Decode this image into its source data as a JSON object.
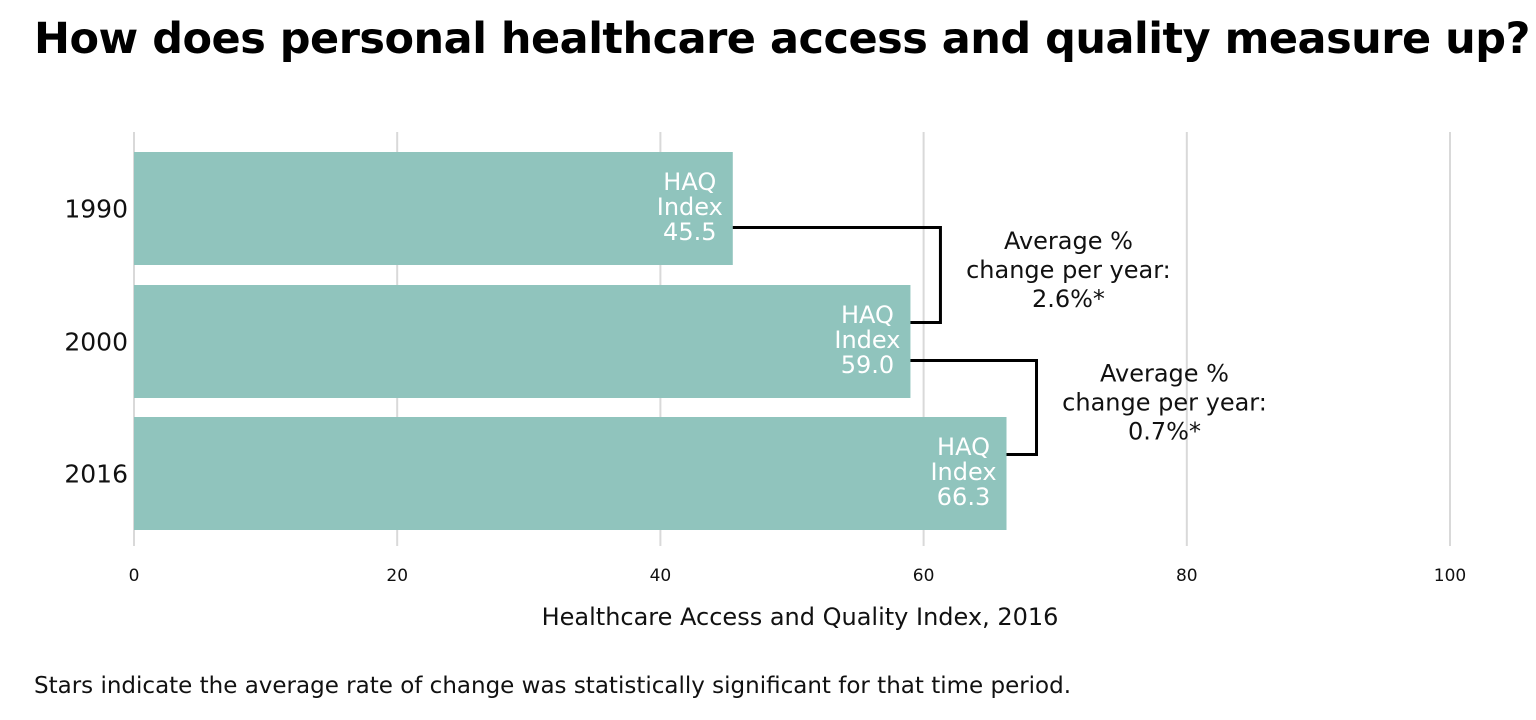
{
  "title": "How does personal healthcare access and quality measure up?",
  "footnote": "Stars indicate the average rate of change was statistically significant for that time period.",
  "colors": {
    "bar": "#90c4bd",
    "bar_label": "#ffffff",
    "grid": "#d9d9d9",
    "bracket": "#000000",
    "text": "#111111"
  },
  "chart_data": {
    "type": "bar",
    "orientation": "horizontal",
    "categories": [
      "1990",
      "2000",
      "2016"
    ],
    "values": [
      45.5,
      59.0,
      66.3
    ],
    "bar_labels": [
      [
        "HAQ",
        "Index",
        "45.5"
      ],
      [
        "HAQ",
        "Index",
        "59.0"
      ],
      [
        "HAQ",
        "Index",
        "66.3"
      ]
    ],
    "xlabel": "Healthcare Access and Quality Index, 2016",
    "ylabel": "",
    "xlim": [
      0,
      100
    ],
    "xticks": [
      0,
      20,
      40,
      60,
      80,
      100
    ],
    "grid": true,
    "annotations": [
      {
        "from": "1990",
        "to": "2000",
        "lines": [
          "Average %",
          "change per year:",
          "2.6%*"
        ]
      },
      {
        "from": "2000",
        "to": "2016",
        "lines": [
          "Average %",
          "change per year:",
          "0.7%*"
        ]
      }
    ]
  }
}
